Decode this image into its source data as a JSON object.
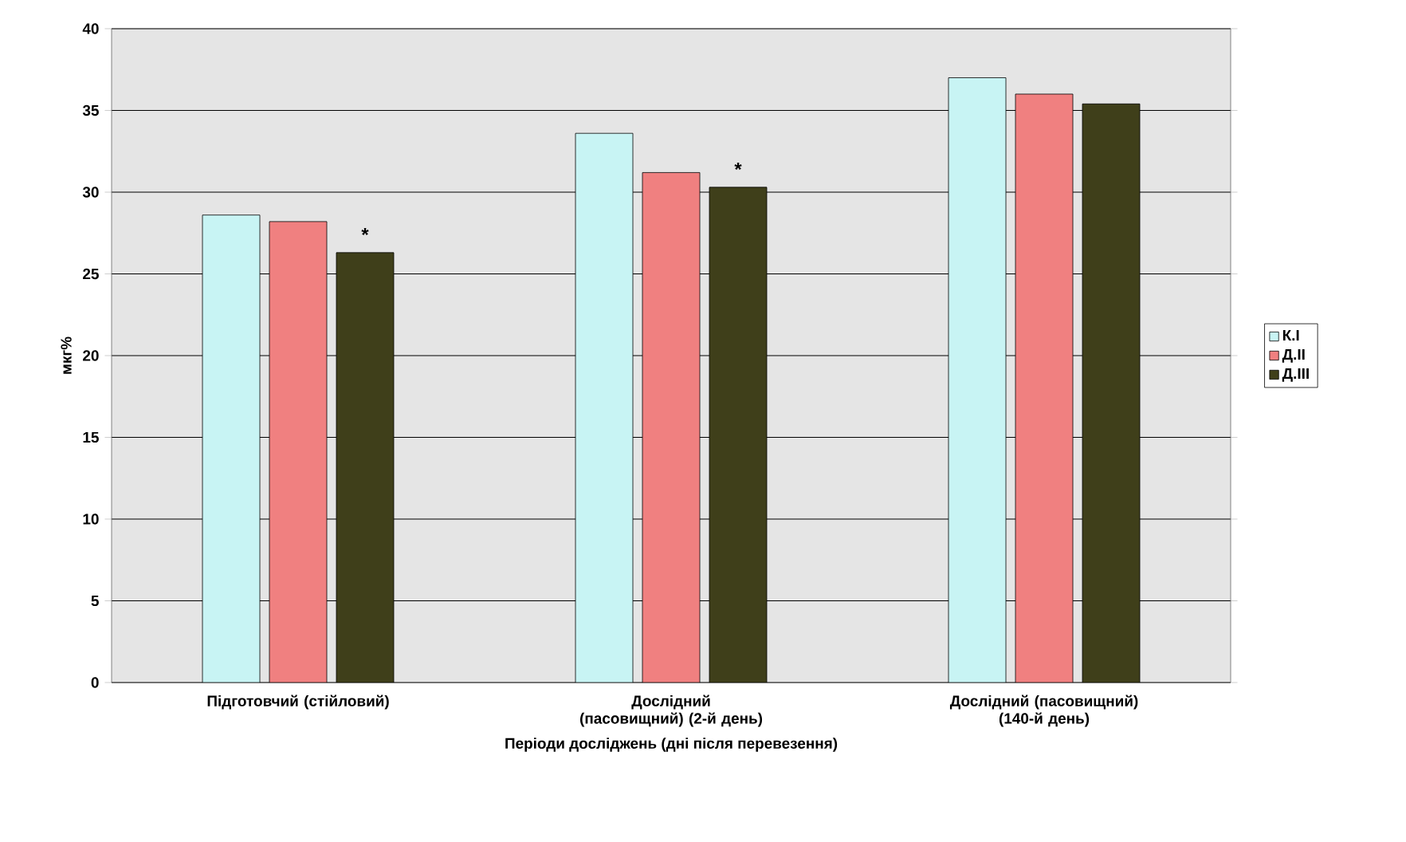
{
  "chart_data": {
    "type": "bar",
    "xlabel": "Періоди досліджень (дні після перевезення)",
    "ylabel": "мкг%",
    "categories": [
      "Підготовчий (стійловий)",
      "Дослідний (пасовищний) (2-й день)",
      "Дослідний (пасовищний) (140-й день)"
    ],
    "series": [
      {
        "name": "К.І",
        "color": "#c8f4f4",
        "values": [
          28.6,
          33.6,
          37.0
        ]
      },
      {
        "name": "Д.ІІ",
        "color": "#f08080",
        "values": [
          28.2,
          31.2,
          36.0
        ]
      },
      {
        "name": "Д.ІІІ",
        "color": "#3f3f1a",
        "values": [
          26.3,
          30.3,
          35.4
        ]
      }
    ],
    "ylim": [
      0,
      40
    ],
    "yticks": [
      0,
      5,
      10,
      15,
      20,
      25,
      30,
      35,
      40
    ],
    "grid": "y",
    "legend": "right",
    "annotations": [
      "*",
      "*"
    ]
  }
}
